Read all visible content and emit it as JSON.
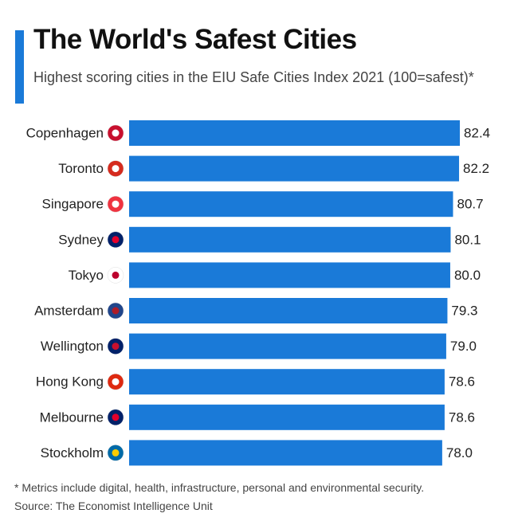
{
  "chart_data": {
    "type": "bar",
    "orientation": "horizontal",
    "title": "The World's Safest Cities",
    "subtitle": "Highest scoring cities in the EIU Safe Cities Index 2021 (100=safest)*",
    "categories": [
      "Copenhagen",
      "Toronto",
      "Singapore",
      "Sydney",
      "Tokyo",
      "Amsterdam",
      "Wellington",
      "Hong Kong",
      "Melbourne",
      "Stockholm"
    ],
    "values": [
      82.4,
      82.2,
      80.7,
      80.1,
      80.0,
      79.3,
      79.0,
      78.6,
      78.6,
      78.0
    ],
    "value_labels": [
      "82.4",
      "82.2",
      "80.7",
      "80.1",
      "80.0",
      "79.3",
      "79.0",
      "78.6",
      "78.6",
      "78.0"
    ],
    "color": "#1a7ad8",
    "note": "* Metrics include digital, health, infrastructure, personal and environmental security.",
    "source": "Source: The Economist Intelligence Unit"
  }
}
